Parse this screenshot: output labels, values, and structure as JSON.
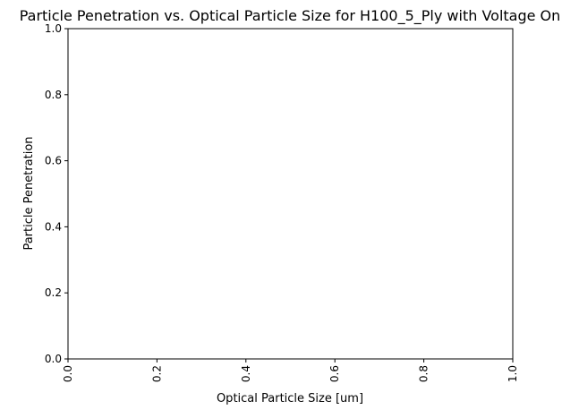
{
  "chart_data": {
    "type": "scatter",
    "title": "Particle Penetration vs. Optical Particle Size for H100_5_Ply with Voltage On",
    "xlabel": "Optical Particle Size [um]",
    "ylabel": "Particle Penetration",
    "xlim": [
      0,
      1
    ],
    "ylim": [
      0,
      1
    ],
    "x_ticks": [
      "0.0",
      "0.2",
      "0.4",
      "0.6",
      "0.8",
      "1.0"
    ],
    "y_ticks": [
      "0.0",
      "0.2",
      "0.4",
      "0.6",
      "0.8",
      "1.0"
    ],
    "x_tick_rotation": "vertical",
    "grid": false,
    "legend": "none",
    "series": []
  }
}
